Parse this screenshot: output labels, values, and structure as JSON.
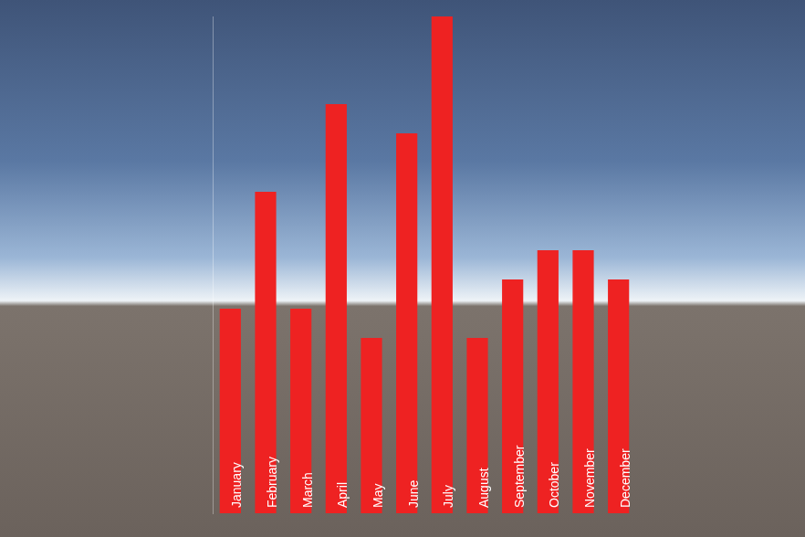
{
  "chart_data": {
    "type": "bar",
    "categories": [
      "January",
      "February",
      "March",
      "April",
      "May",
      "June",
      "July",
      "August",
      "September",
      "October",
      "November",
      "December"
    ],
    "values": [
      7,
      11,
      7,
      14,
      6,
      13,
      17,
      6,
      8,
      9,
      9,
      8
    ],
    "color": "#ee2222",
    "ylim": [
      0,
      17
    ],
    "grid": false,
    "tick_labels": "x"
  }
}
